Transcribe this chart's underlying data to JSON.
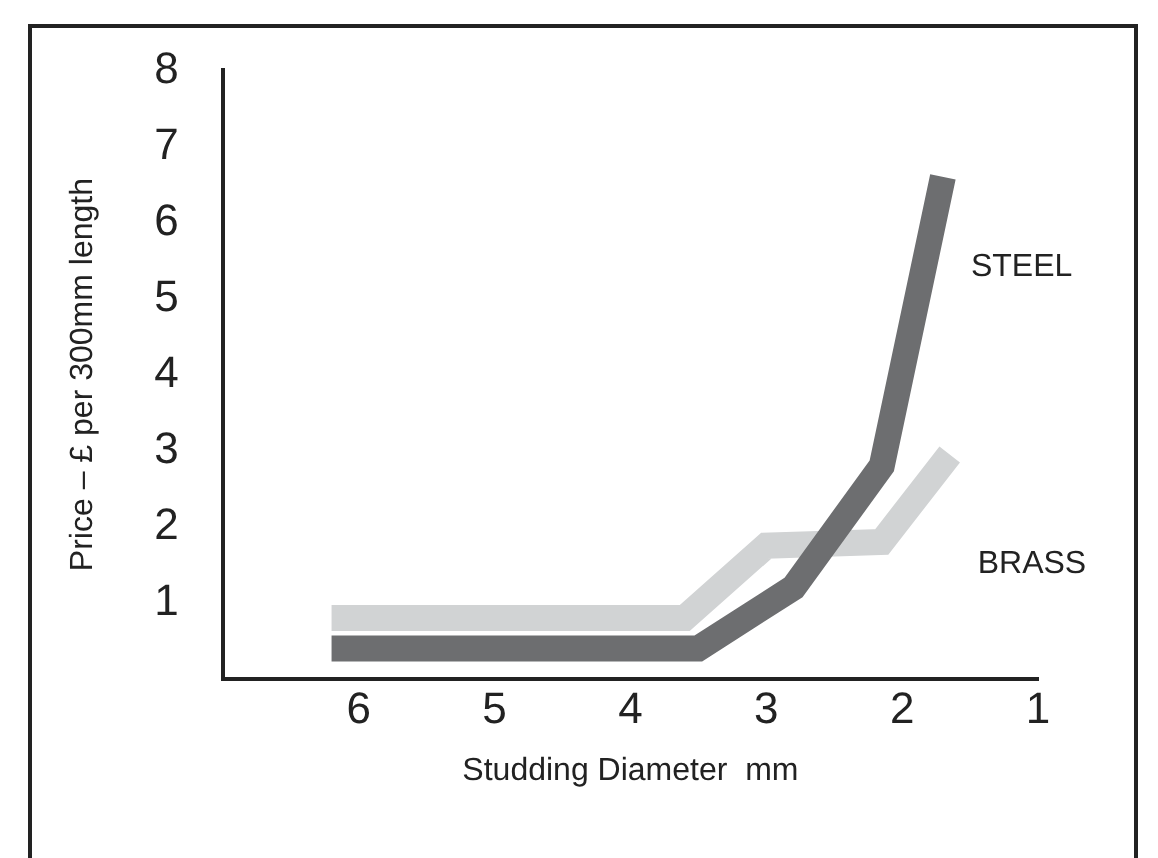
{
  "chart_data": {
    "type": "line",
    "xlabel": "Studding Diameter  mm",
    "ylabel": "Price – £ per 300mm length",
    "xlim": [
      7,
      1
    ],
    "ylim": [
      0,
      8
    ],
    "xticks": [
      6,
      5,
      4,
      3,
      2,
      1
    ],
    "yticks": [
      1,
      2,
      3,
      4,
      5,
      6,
      7,
      8
    ],
    "grid": false,
    "legend": false,
    "marker": "none",
    "line_style": "solid",
    "series": [
      {
        "name": "STEEL",
        "color": "#6d6e70",
        "x": [
          6.2,
          3.5,
          2.8,
          2.15,
          1.7
        ],
        "values": [
          0.4,
          0.4,
          1.2,
          2.8,
          6.6
        ]
      },
      {
        "name": "BRASS",
        "color": "#d1d3d4",
        "x": [
          6.2,
          3.6,
          3.0,
          2.15,
          1.65
        ],
        "values": [
          0.8,
          0.8,
          1.75,
          1.8,
          2.95
        ]
      }
    ]
  }
}
